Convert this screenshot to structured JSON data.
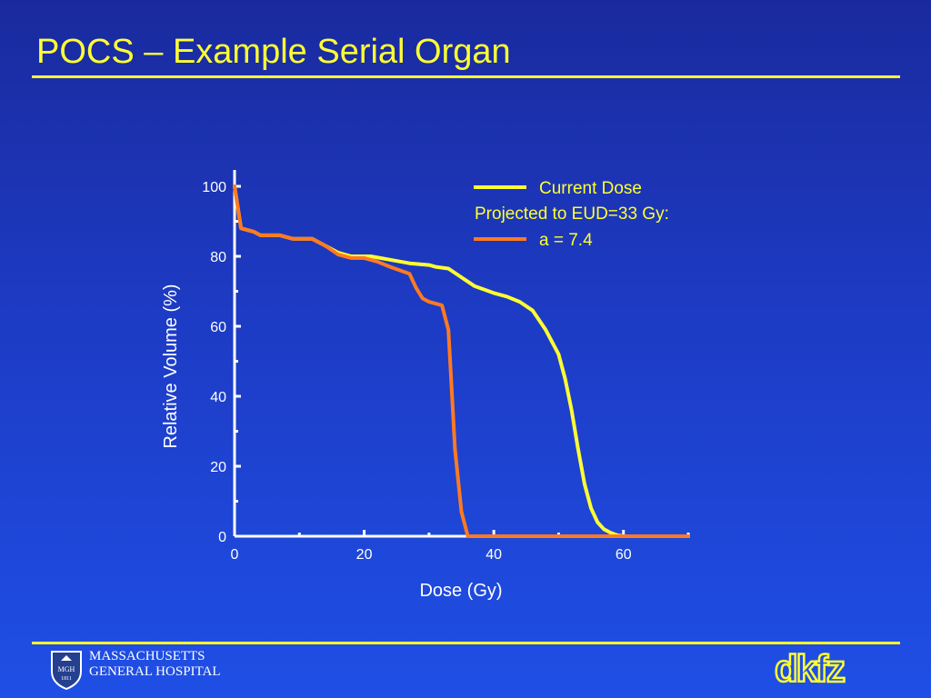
{
  "slide": {
    "title": "POCS – Example Serial Organ"
  },
  "footer": {
    "hospital_line1": "MASSACHUSETTS",
    "hospital_line2": "GENERAL HOSPITAL",
    "shield_text_top": "MGH",
    "shield_text_bottom": "1811",
    "institute_logo": "dkfz"
  },
  "colors": {
    "background": "#1d3bc4",
    "title": "#ffff33",
    "current_dose": "#ffff33",
    "projected": "#ff7a20",
    "axis": "#ffffff"
  },
  "chart_data": {
    "type": "line",
    "xlabel": "Dose (Gy)",
    "ylabel": "Relative Volume (%)",
    "xlim": [
      0,
      70
    ],
    "ylim": [
      0,
      100
    ],
    "xticks": [
      0,
      20,
      40,
      60
    ],
    "yticks": [
      0,
      20,
      40,
      60,
      80,
      100
    ],
    "grid": false,
    "legend_position": "top-right",
    "legend": {
      "entry1": "Current Dose",
      "entry2_line1": "Projected to EUD=33 Gy:",
      "entry2_line2": "a = 7.4"
    },
    "series": [
      {
        "name": "Current Dose",
        "color": "#ffff33",
        "x": [
          0,
          1,
          3,
          4,
          7,
          9,
          12,
          14,
          16,
          18,
          21,
          24,
          27,
          30,
          31,
          33,
          35,
          37,
          40,
          42,
          44,
          46,
          48,
          50,
          51,
          52,
          53,
          54,
          55,
          56,
          57,
          58,
          59,
          60,
          62,
          70
        ],
        "y": [
          100,
          88,
          87,
          86,
          86,
          85,
          85,
          83,
          81,
          80,
          80,
          79,
          78,
          77.5,
          77,
          76.5,
          74,
          71.5,
          69.5,
          68.5,
          67,
          64.5,
          59,
          52,
          45,
          36,
          25,
          15,
          8,
          4,
          2,
          1,
          0.3,
          0,
          0,
          0
        ]
      },
      {
        "name": "Projected to EUD=33 Gy: a = 7.4",
        "color": "#ff7a20",
        "x": [
          0,
          1,
          3,
          4,
          7,
          9,
          12,
          14,
          16,
          18,
          20,
          22,
          24,
          27,
          28,
          29,
          30,
          32,
          33,
          34,
          35,
          36,
          40,
          50,
          60,
          70
        ],
        "y": [
          100,
          88,
          87,
          86,
          86,
          85,
          85,
          83,
          80.5,
          79.5,
          79.5,
          78.5,
          77,
          75,
          71,
          68,
          67,
          66,
          59,
          25,
          7,
          0,
          0,
          0,
          0,
          0
        ]
      }
    ]
  }
}
